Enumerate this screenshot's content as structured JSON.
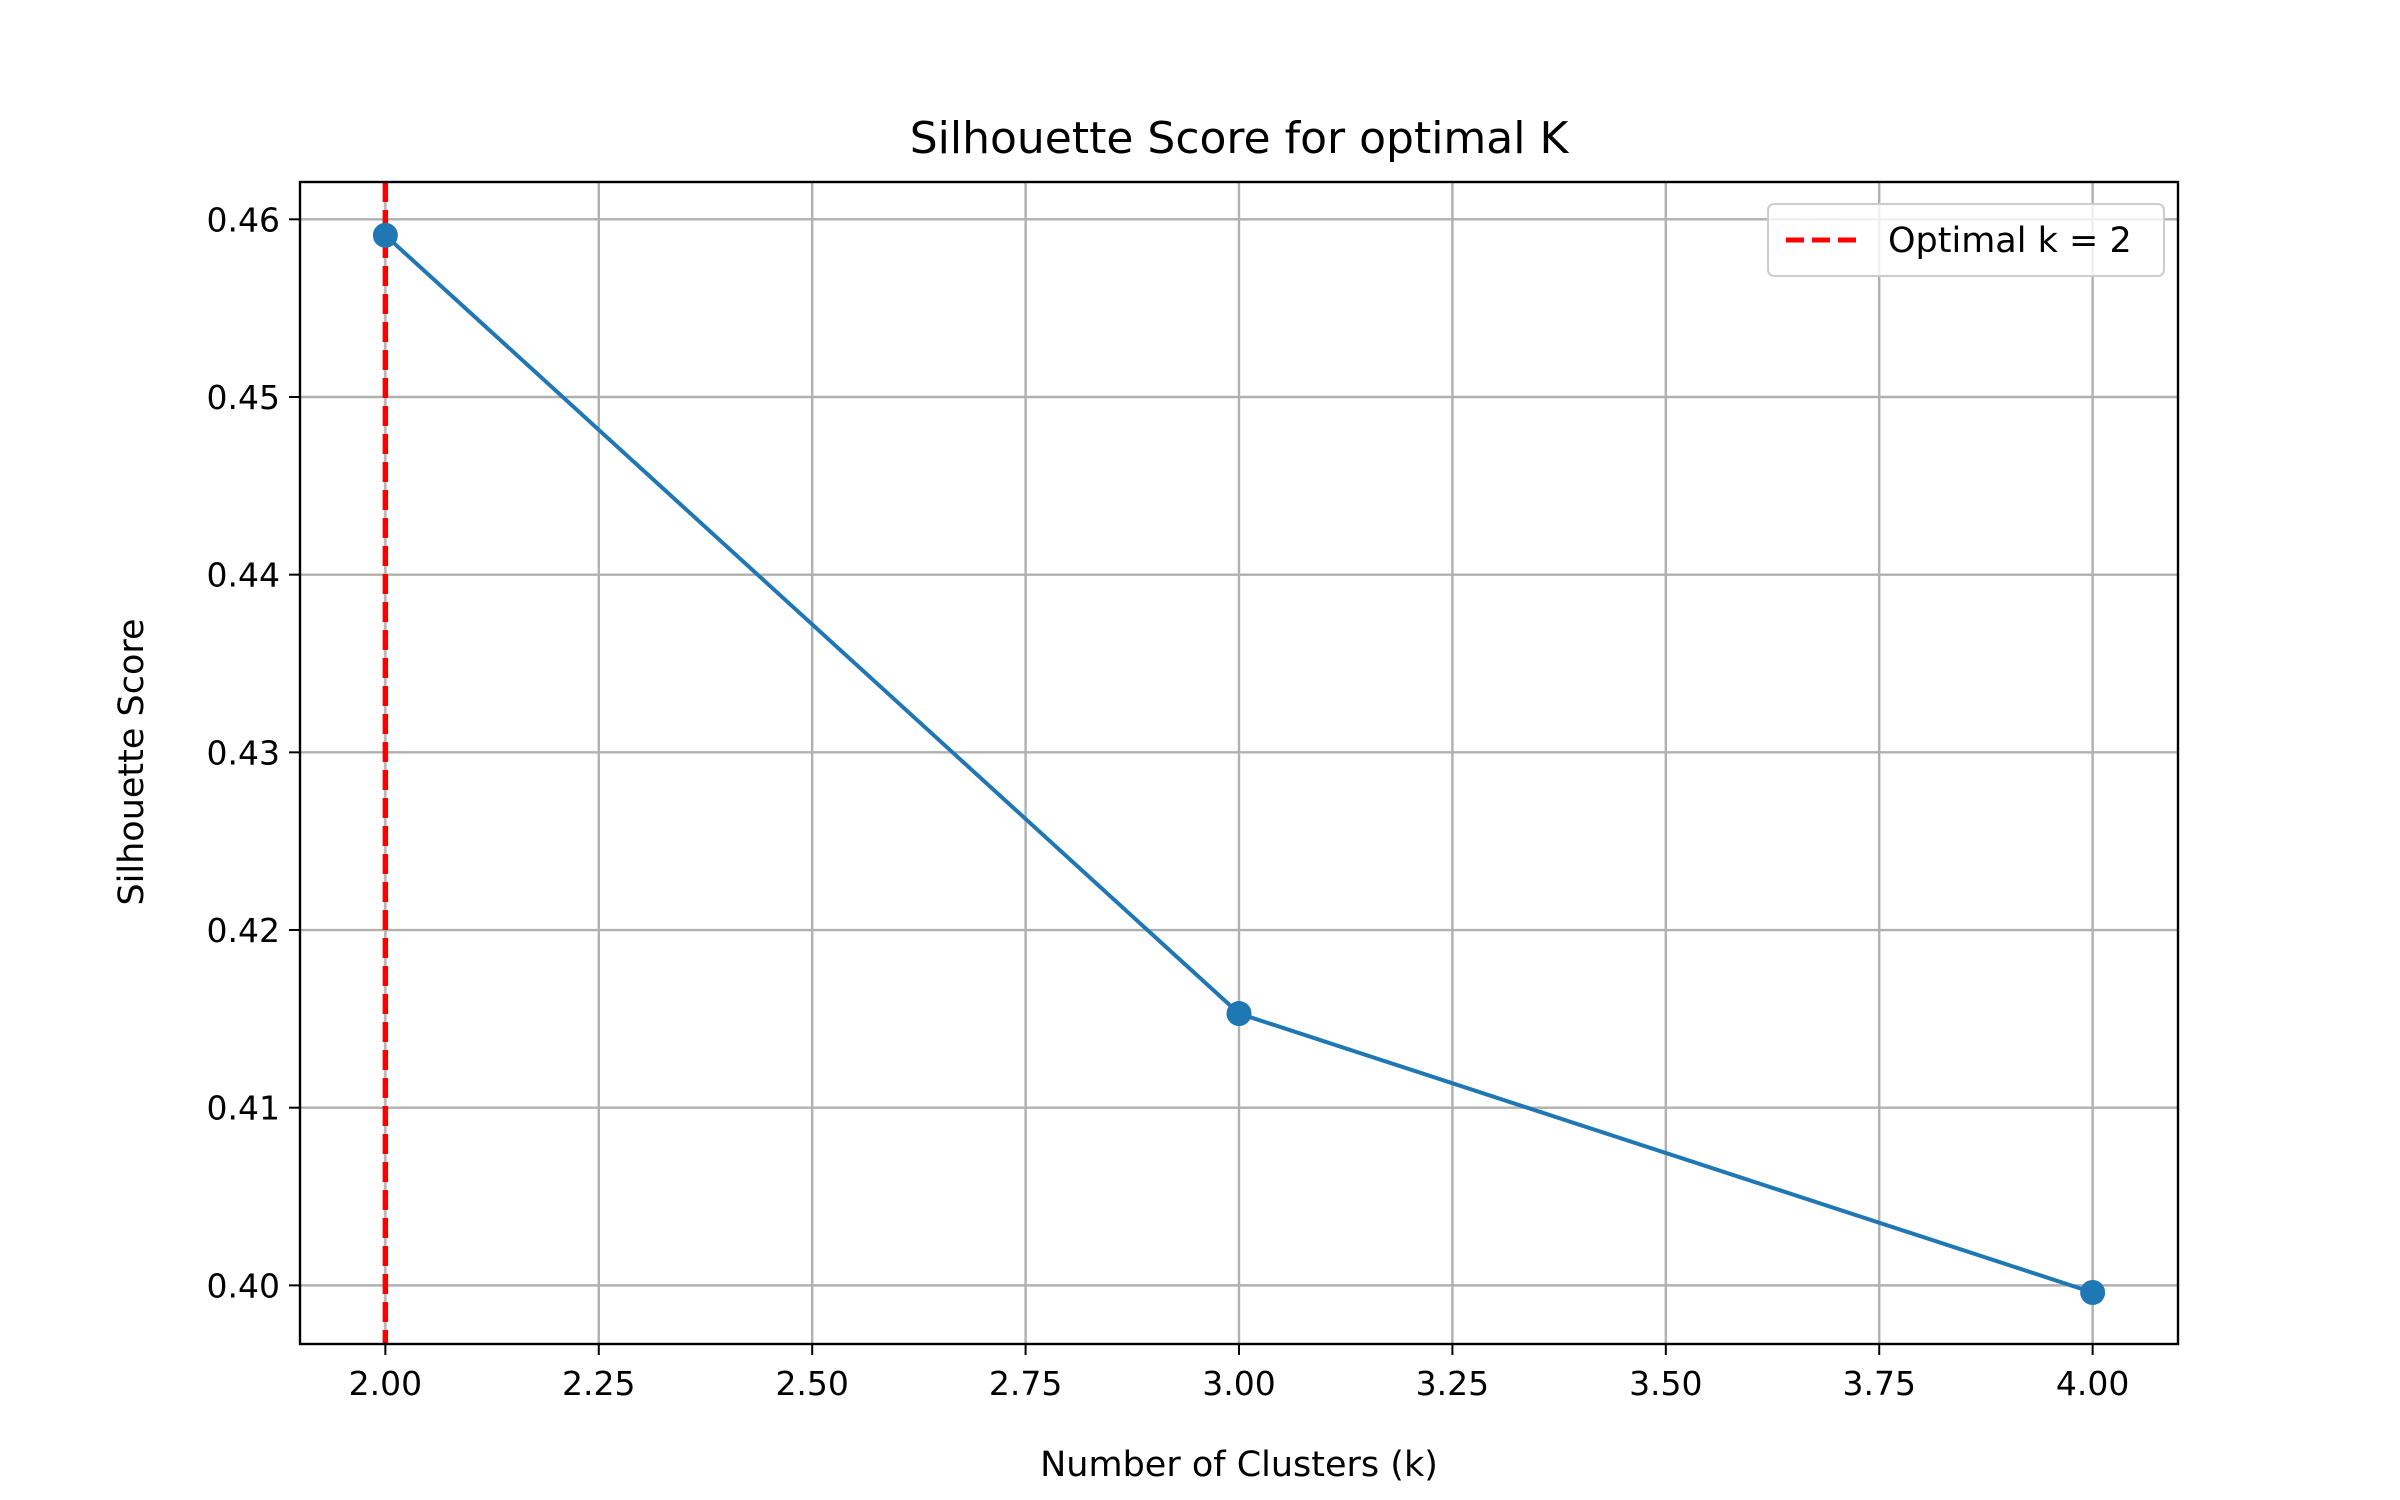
{
  "chart_data": {
    "type": "line",
    "title": "Silhouette Score for optimal K",
    "xlabel": "Number of Clusters (k)",
    "ylabel": "Silhouette Score",
    "xlim": [
      1.9,
      4.1
    ],
    "ylim": [
      0.3967,
      0.4621
    ],
    "xticks": [
      2.0,
      2.25,
      2.5,
      2.75,
      3.0,
      3.25,
      3.5,
      3.75,
      4.0
    ],
    "xtick_labels": [
      "2.00",
      "2.25",
      "2.50",
      "2.75",
      "3.00",
      "3.25",
      "3.50",
      "3.75",
      "4.00"
    ],
    "yticks": [
      0.4,
      0.41,
      0.42,
      0.43,
      0.44,
      0.45,
      0.46
    ],
    "ytick_labels": [
      "0.40",
      "0.41",
      "0.42",
      "0.43",
      "0.44",
      "0.45",
      "0.46"
    ],
    "grid": true,
    "series": [
      {
        "x": [
          2,
          3,
          4
        ],
        "y": [
          0.4591,
          0.4153,
          0.3996
        ],
        "color": "#1f77b4",
        "marker": "circle"
      }
    ],
    "reference_lines": [
      {
        "orientation": "vertical",
        "x": 2,
        "style": "dashed",
        "color": "#ff0000",
        "label": "Optimal k = 2"
      }
    ],
    "legend": {
      "position": "top-right"
    }
  }
}
